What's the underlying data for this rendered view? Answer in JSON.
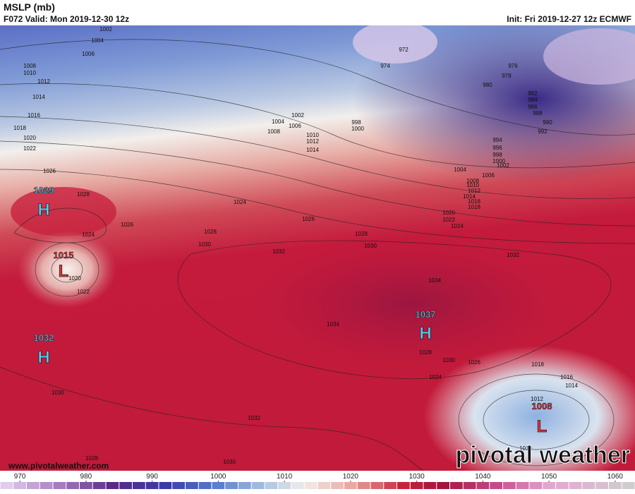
{
  "header": {
    "title": "MSLP (mb)",
    "valid": "F072 Valid: Mon 2019-12-30 12z",
    "init": "Init: Fri 2019-12-27 12z ECMWF"
  },
  "watermark": {
    "url": "www.pivotalweather.com",
    "brand": "pivotal weather"
  },
  "centers": [
    {
      "label": "H",
      "value": 1029,
      "color": "#5cc8f2"
    },
    {
      "label": "L",
      "value": 1015,
      "color": "#e8333a"
    },
    {
      "label": "H",
      "value": 1032,
      "color": "#5cc8f2"
    },
    {
      "label": "H",
      "value": 1037,
      "color": "#5cc8f2"
    },
    {
      "label": "L",
      "value": 1008,
      "color": "#e8333a"
    }
  ],
  "contour_labels": [
    1002,
    1004,
    1006,
    1008,
    1010,
    1012,
    1014,
    1016,
    1018,
    1020,
    1022,
    1026,
    1028,
    1026,
    1024,
    1020,
    1022,
    1024,
    1028,
    1030,
    1032,
    1026,
    1028,
    1030,
    1032,
    1034,
    1034,
    1028,
    1030,
    1026,
    1024,
    1018,
    1016,
    1014,
    1012,
    1010,
    1030,
    1032,
    1028,
    1030,
    972,
    974,
    976,
    978,
    980,
    982,
    984,
    986,
    988,
    990,
    992,
    994,
    996,
    998,
    1000,
    1002,
    1004,
    1006,
    1008,
    1010,
    1012,
    1014,
    1016,
    1018,
    1020,
    1022,
    1024,
    1002,
    1004,
    1006,
    1008,
    998,
    1000,
    1010,
    1012,
    1014
  ],
  "colorbar": {
    "range": [
      967,
      1063
    ],
    "ticks": [
      970,
      980,
      990,
      1000,
      1010,
      1020,
      1030,
      1040,
      1050,
      1060
    ],
    "colors": [
      {
        "value": 967,
        "color": "#e6d7ef"
      },
      {
        "value": 976,
        "color": "#a77cbe"
      },
      {
        "value": 984,
        "color": "#5a2a86"
      },
      {
        "value": 992,
        "color": "#3a3aa8"
      },
      {
        "value": 1000,
        "color": "#5b7fce"
      },
      {
        "value": 1008,
        "color": "#b7c9e3"
      },
      {
        "value": 1013,
        "color": "#f1eeea"
      },
      {
        "value": 1020,
        "color": "#e8aaa2"
      },
      {
        "value": 1028,
        "color": "#c8233d"
      },
      {
        "value": 1034,
        "color": "#a3143e"
      },
      {
        "value": 1042,
        "color": "#c64a8a"
      },
      {
        "value": 1050,
        "color": "#e4a6d0"
      },
      {
        "value": 1063,
        "color": "#cfcfcf"
      }
    ]
  }
}
